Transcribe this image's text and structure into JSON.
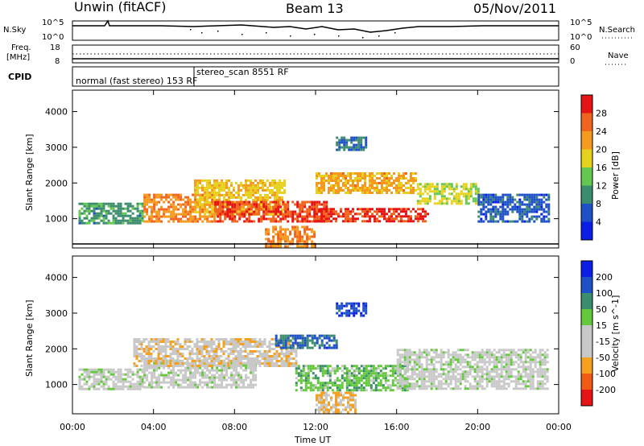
{
  "header": {
    "station": "Unwin (fitACF)",
    "beam": "Beam 13",
    "date": "05/Nov/2011"
  },
  "noise_panel": {
    "left_label": "N.Sky",
    "right_label": "N.Search",
    "left_ticks": [
      "10^5",
      "10^0"
    ],
    "right_ticks": [
      "10^5",
      "10^0"
    ]
  },
  "freq_panel": {
    "left_label_1": "Freq.",
    "left_label_2": "[MHz]",
    "right_label": "Nave",
    "left_ticks": [
      "18",
      "8"
    ],
    "right_ticks": [
      "60",
      "0"
    ]
  },
  "cpid_panel": {
    "label": "CPID",
    "entries": [
      {
        "text": "normal (fast stereo) 153 RF",
        "start_hour": 0.0
      },
      {
        "text": "stereo_scan 8551 RF",
        "start_hour": 6.0
      }
    ]
  },
  "axes": {
    "ylabel": "Slant Range [km]",
    "xlabel": "Time UT",
    "xticks": [
      "00:00",
      "04:00",
      "08:00",
      "12:00",
      "16:00",
      "20:00",
      "00:00"
    ],
    "yticks": [
      "1000",
      "2000",
      "3000",
      "4000"
    ]
  },
  "chart_data": [
    {
      "type": "heatmap",
      "title": "",
      "xlabel": "Time UT",
      "ylabel": "Slant Range [km]",
      "xlim": [
        0,
        24
      ],
      "ylim": [
        180,
        4600
      ],
      "colorbar": {
        "label": "Power [dB]",
        "ticks": [
          "4",
          "8",
          "12",
          "16",
          "20",
          "24",
          "28"
        ],
        "range": [
          0,
          30
        ],
        "colors": [
          "#0a1ee6",
          "#1e50c8",
          "#3c8c6e",
          "#64c850",
          "#e6d21e",
          "#f59a1e",
          "#f0641e",
          "#e61414"
        ]
      },
      "regions": [
        {
          "t0": 0.3,
          "t1": 3.5,
          "r0": 900,
          "r1": 1450,
          "value": 10
        },
        {
          "t0": 3.5,
          "t1": 7.0,
          "r0": 900,
          "r1": 1700,
          "value": 22
        },
        {
          "t0": 6.0,
          "t1": 10.5,
          "r0": 1150,
          "r1": 2100,
          "value": 18
        },
        {
          "t0": 7.0,
          "t1": 12.5,
          "r0": 950,
          "r1": 1500,
          "value": 26
        },
        {
          "t0": 9.5,
          "t1": 12.0,
          "r0": 200,
          "r1": 800,
          "value": 22
        },
        {
          "t0": 12.0,
          "t1": 17.5,
          "r0": 900,
          "r1": 1300,
          "value": 27
        },
        {
          "t0": 12.0,
          "t1": 17.0,
          "r0": 1700,
          "r1": 2300,
          "value": 20
        },
        {
          "t0": 17.0,
          "t1": 20.0,
          "r0": 1400,
          "r1": 2000,
          "value": 16
        },
        {
          "t0": 20.0,
          "t1": 23.5,
          "r0": 900,
          "r1": 1700,
          "value": 6
        },
        {
          "t0": 13.0,
          "t1": 14.5,
          "r0": 2900,
          "r1": 3300,
          "value": 8
        }
      ]
    },
    {
      "type": "heatmap",
      "title": "",
      "xlabel": "Time UT",
      "ylabel": "Slant Range [km]",
      "xlim": [
        0,
        24
      ],
      "ylim": [
        180,
        4600
      ],
      "colorbar": {
        "label": "Velocity [m s^-1]",
        "ticks": [
          "-200",
          "-100",
          "-50",
          "-15",
          "15",
          "50",
          "100",
          "200"
        ],
        "range": [
          -250,
          250
        ],
        "colors": [
          "#e61414",
          "#f05a14",
          "#f5a01e",
          "#c8c8c8",
          "#c8c8c8",
          "#64c83c",
          "#3c8c6e",
          "#1e50c8",
          "#0a1ee6"
        ]
      },
      "regions": [
        {
          "t0": 0.3,
          "t1": 3.5,
          "r0": 900,
          "r1": 1450,
          "value": 0
        },
        {
          "t0": 3.5,
          "t1": 9.0,
          "r0": 900,
          "r1": 1700,
          "value": 0
        },
        {
          "t0": 3.0,
          "t1": 11.0,
          "r0": 1500,
          "r1": 2300,
          "value": -60
        },
        {
          "t0": 10.0,
          "t1": 13.0,
          "r0": 2000,
          "r1": 2400,
          "value": 150
        },
        {
          "t0": 11.0,
          "t1": 16.5,
          "r0": 850,
          "r1": 1550,
          "value": 60
        },
        {
          "t0": 12.0,
          "t1": 14.0,
          "r0": 200,
          "r1": 800,
          "value": -80
        },
        {
          "t0": 16.0,
          "t1": 23.5,
          "r0": 900,
          "r1": 2000,
          "value": 0
        },
        {
          "t0": 13.0,
          "t1": 14.5,
          "r0": 2900,
          "r1": 3300,
          "value": 180
        }
      ]
    }
  ]
}
